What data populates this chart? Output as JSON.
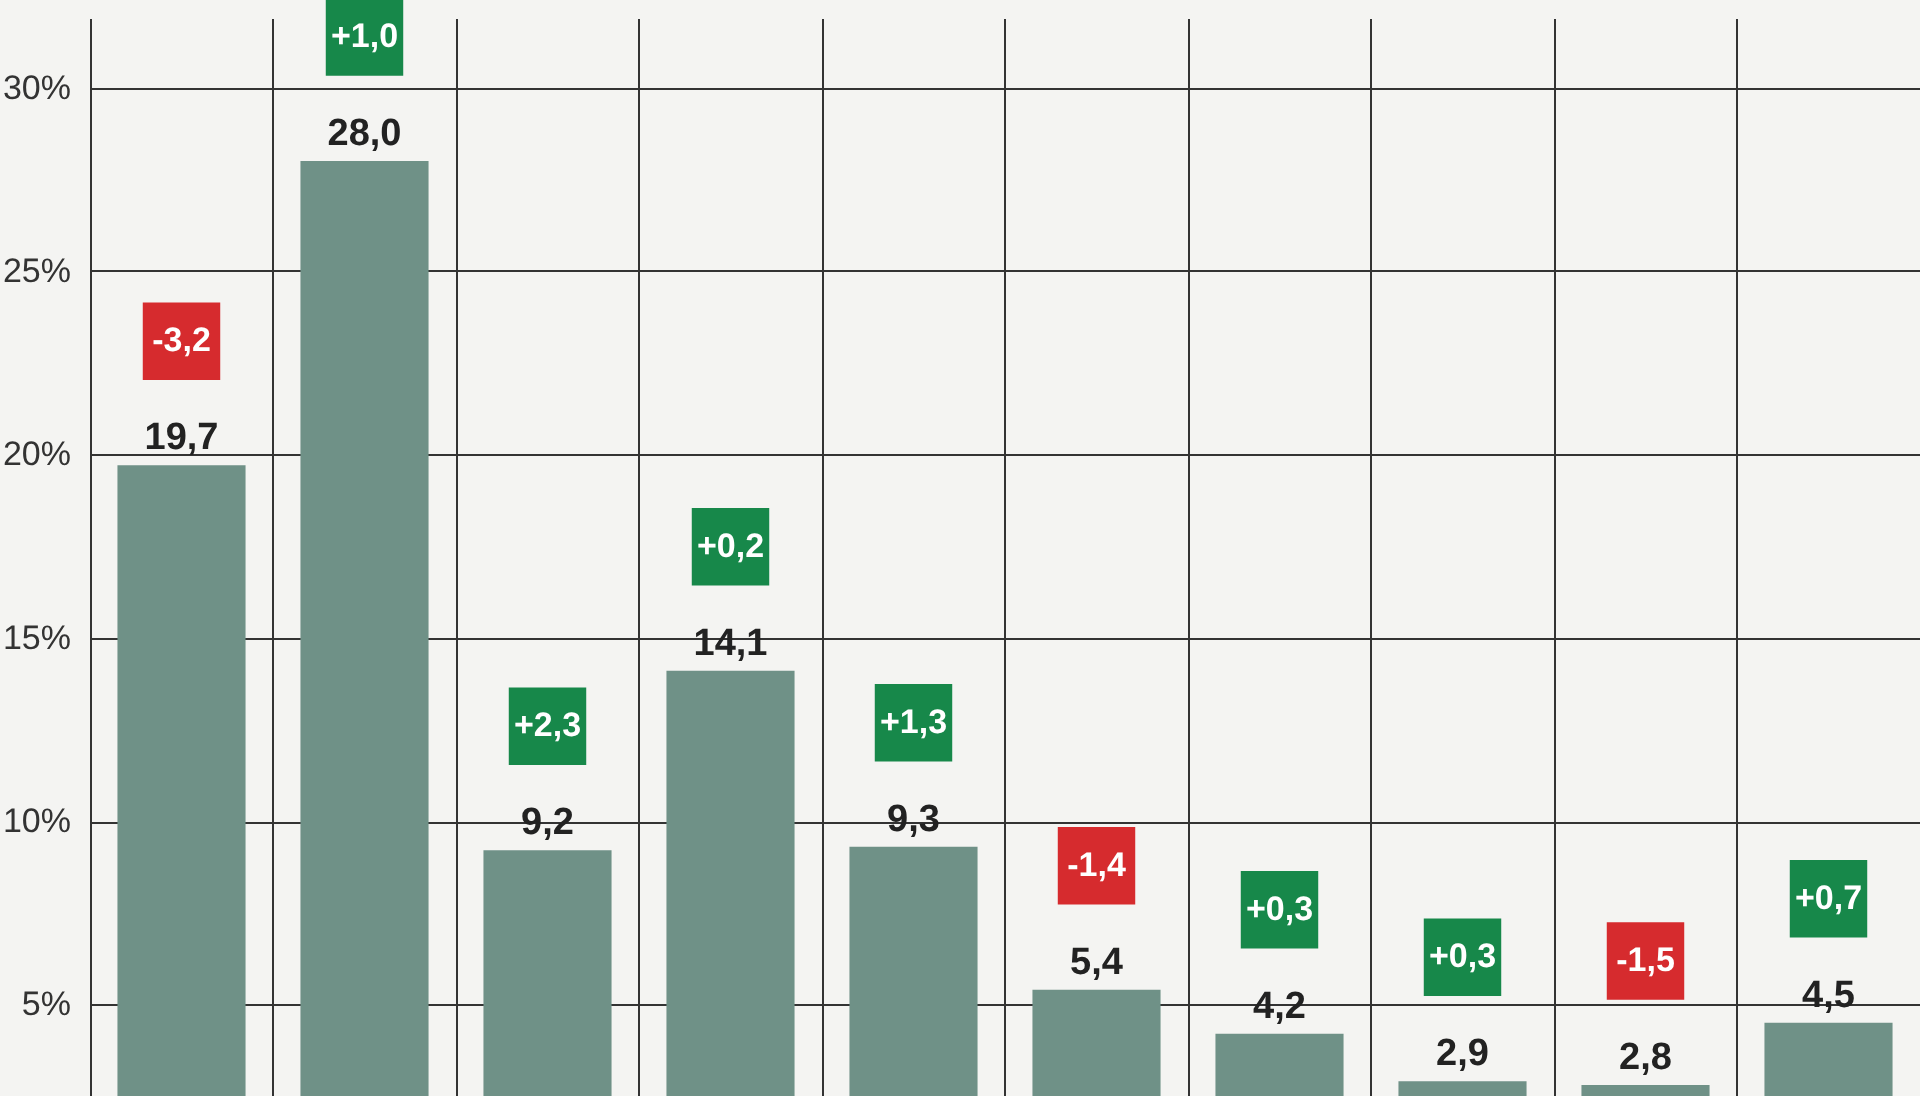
{
  "chart_data": {
    "type": "bar",
    "categories": [
      null,
      null,
      null,
      null,
      null,
      null,
      null,
      null,
      null,
      null
    ],
    "values": [
      19.7,
      28.0,
      9.2,
      14.1,
      9.3,
      5.4,
      4.2,
      2.9,
      2.8,
      4.5
    ],
    "value_labels": [
      "19,7",
      "28,0",
      "9,2",
      "14,1",
      "9,3",
      "5,4",
      "4,2",
      "2,9",
      "2,8",
      "4,5"
    ],
    "color": "#6f9187",
    "annotations": [
      "-3,2",
      "+1,0",
      "+2,3",
      "+0,2",
      "+1,3",
      "-1,4",
      "+0,3",
      "+0,3",
      "-1,5",
      "+0,7"
    ],
    "ylim": [
      2.5,
      31.9
    ],
    "yticks": [
      {
        "value": 5,
        "label": "5%"
      },
      {
        "value": 10,
        "label": "10%"
      },
      {
        "value": 15,
        "label": "15%"
      },
      {
        "value": 20,
        "label": "20%"
      },
      {
        "value": 25,
        "label": "25%"
      },
      {
        "value": 30,
        "label": "30%"
      }
    ],
    "tick_labels": "y",
    "grid": true
  }
}
